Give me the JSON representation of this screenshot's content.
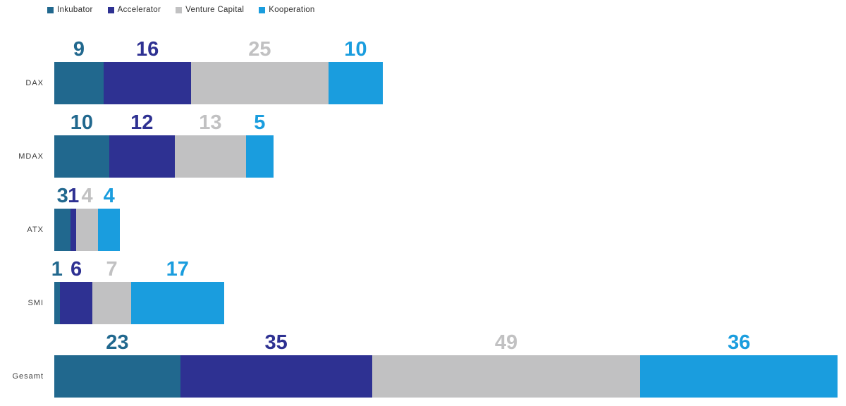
{
  "chart_data": {
    "type": "bar",
    "variant": "horizontal_stacked",
    "title": "",
    "categories": [
      "DAX",
      "MDAX",
      "ATX",
      "SMI",
      "Gesamt"
    ],
    "series": [
      {
        "name": "Inkubator",
        "color": "#21688e",
        "values": [
          9,
          10,
          3,
          1,
          23
        ]
      },
      {
        "name": "Accelerator",
        "color": "#2e3192",
        "values": [
          16,
          12,
          1,
          6,
          35
        ]
      },
      {
        "name": "Venture Capital",
        "color": "#c1c1c2",
        "values": [
          25,
          13,
          4,
          7,
          49
        ]
      },
      {
        "name": "Kooperation",
        "color": "#1a9dde",
        "values": [
          10,
          5,
          4,
          17,
          36
        ]
      }
    ],
    "totals": [
      60,
      40,
      12,
      31,
      143
    ],
    "value_labels": "above_segments_colored_to_match",
    "legend_position": "top-left",
    "grid": false,
    "axes_hidden": true,
    "background": "#ffffff",
    "category_label_color": "#3c3c3c",
    "legend_text_color": "#303030"
  }
}
